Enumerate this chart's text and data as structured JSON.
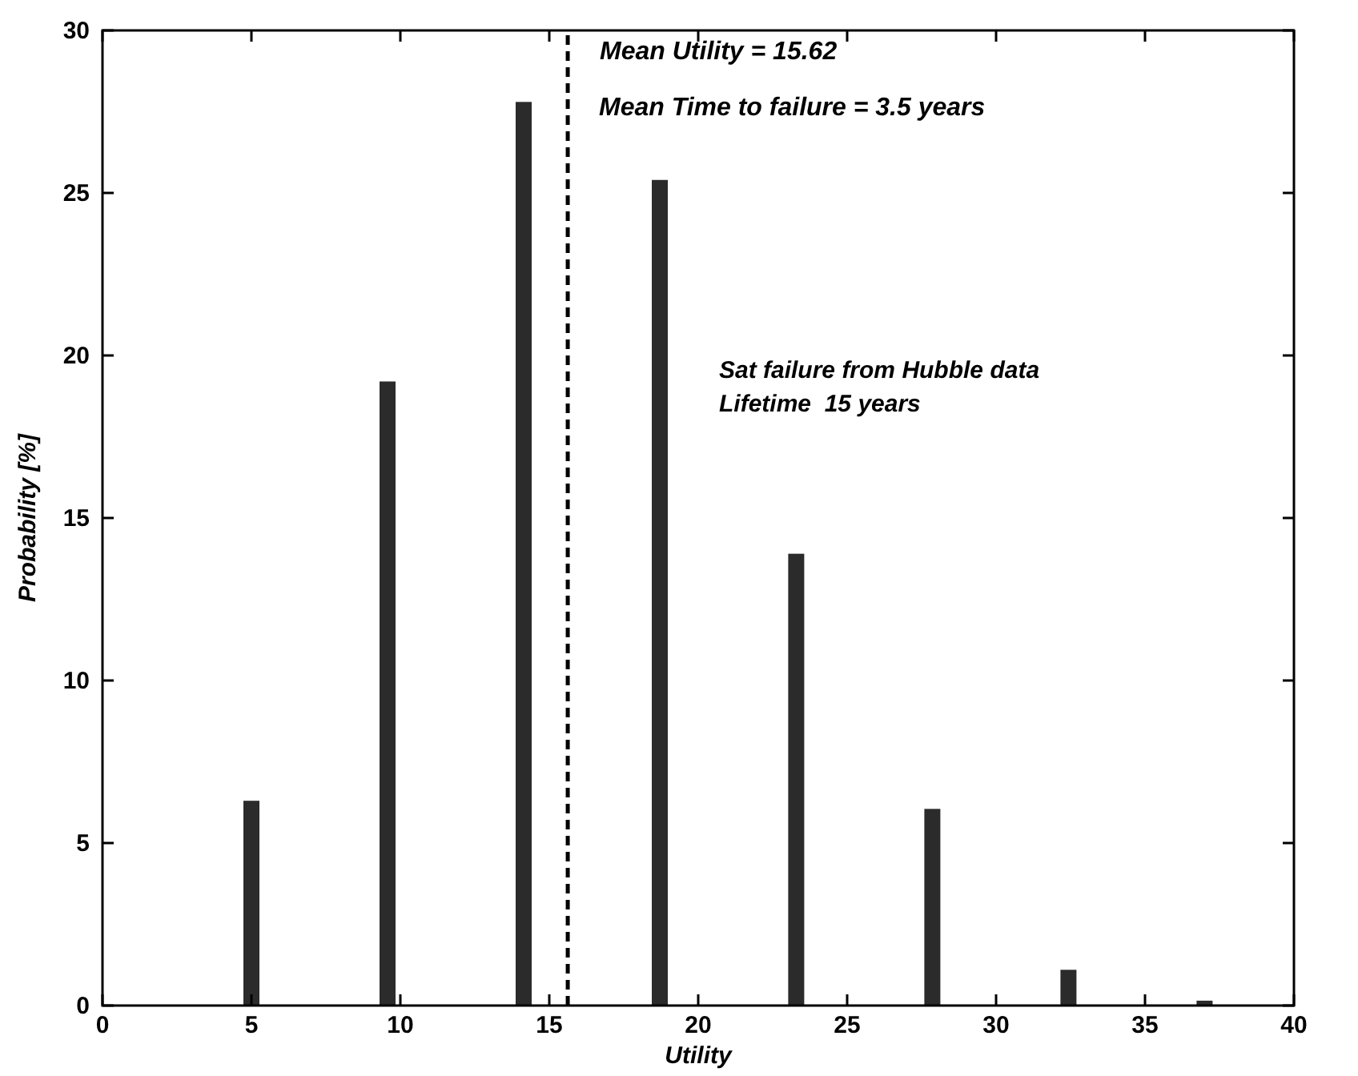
{
  "chart_data": {
    "type": "bar",
    "xlabel": "Utility",
    "ylabel": "Probability [%]",
    "x": [
      5,
      9.57,
      14.14,
      18.71,
      23.29,
      27.86,
      32.43,
      37
    ],
    "values": [
      6.3,
      19.2,
      27.8,
      25.4,
      13.9,
      6.05,
      1.1,
      0.15
    ],
    "color": "#2b2b2b",
    "xlim": [
      0,
      40
    ],
    "xticks": [
      0,
      5,
      10,
      15,
      20,
      25,
      30,
      35,
      40
    ],
    "ylim": [
      0,
      30
    ],
    "yticks": [
      0,
      5,
      10,
      15,
      20,
      25,
      30
    ],
    "grid": false,
    "ref_lines": [
      {
        "axis": "x",
        "value": 15.62,
        "label": "Mean Utility = 15.62",
        "color": "#000000",
        "line_style": "dashed"
      }
    ],
    "annotations": [
      "Mean Time to failure = 3.5 years",
      "Sat failure from Hubble data",
      "Lifetime  15 years"
    ]
  }
}
